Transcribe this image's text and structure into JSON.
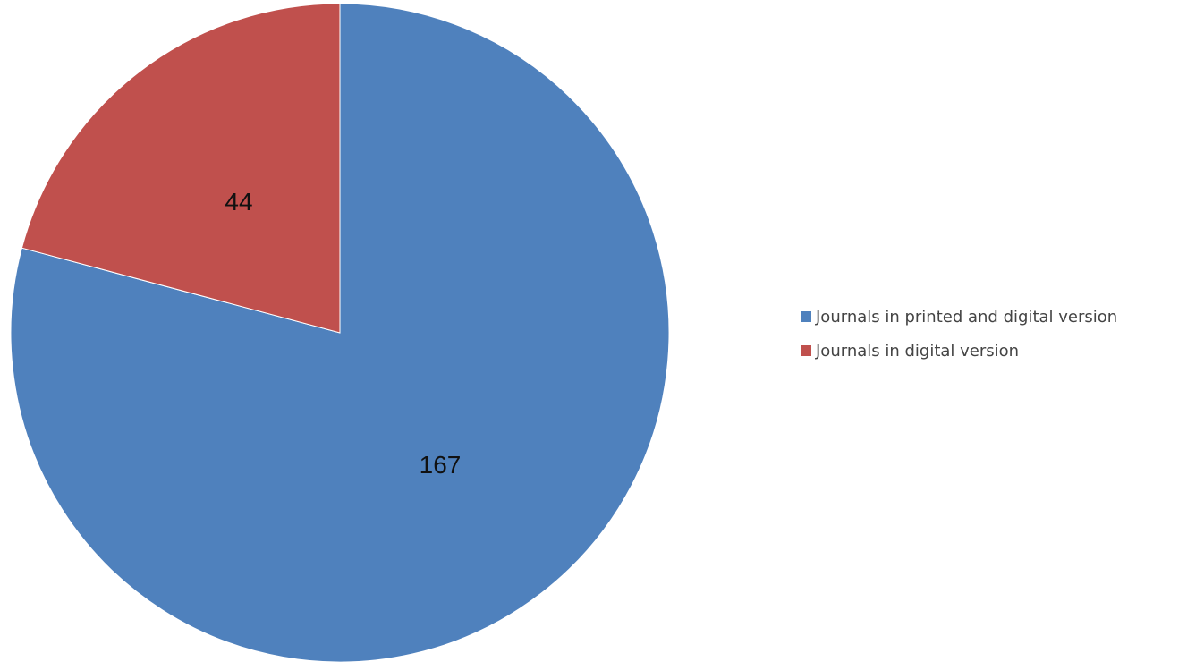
{
  "chart_data": {
    "type": "pie",
    "title": "",
    "start_angle_degrees": 0,
    "direction": "clockwise",
    "slices": [
      {
        "name": "Journals in printed and digital version",
        "value": 167,
        "label": "167",
        "color": "#4F81BD"
      },
      {
        "name": "Journals in digital version",
        "value": 44,
        "label": "44",
        "color": "#C0504D"
      }
    ],
    "legend": {
      "position": "right",
      "items": [
        {
          "label": "Journals in printed and digital version",
          "color": "#4F81BD"
        },
        {
          "label": "Journals in digital version",
          "color": "#C0504D"
        }
      ]
    }
  }
}
